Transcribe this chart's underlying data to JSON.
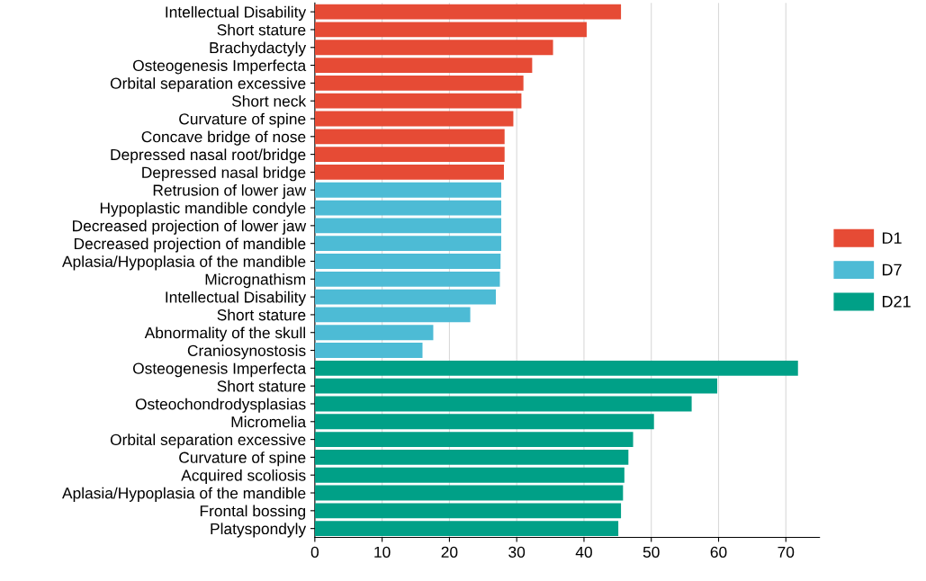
{
  "chart_data": {
    "type": "bar",
    "orientation": "horizontal",
    "categories": [
      "Intellectual Disability",
      "Short stature",
      "Brachydactyly",
      "Osteogenesis Imperfecta",
      "Orbital separation excessive",
      "Short neck",
      "Curvature of spine",
      "Concave bridge of nose",
      "Depressed nasal root/bridge",
      "Depressed nasal bridge",
      "Retrusion of lower jaw",
      "Hypoplastic mandible condyle",
      "Decreased projection of lower jaw",
      "Decreased projection of mandible",
      "Aplasia/Hypoplasia of the mandible",
      "Micrognathism",
      "Intellectual Disability",
      "Short stature",
      "Abnormality of the skull",
      "Craniosynostosis",
      "Osteogenesis Imperfecta",
      "Short stature",
      "Osteochondrodysplasias",
      "Micromelia",
      "Orbital separation excessive",
      "Curvature of spine",
      "Acquired scoliosis",
      "Aplasia/Hypoplasia of the mandible",
      "Frontal bossing",
      "Platyspondyly"
    ],
    "series": [
      {
        "name": "D1",
        "color": "#e64b35",
        "values": [
          45.5,
          40.4,
          35.4,
          32.3,
          31.0,
          30.7,
          29.5,
          28.2,
          28.2,
          28.1,
          null,
          null,
          null,
          null,
          null,
          null,
          null,
          null,
          null,
          null,
          null,
          null,
          null,
          null,
          null,
          null,
          null,
          null,
          null,
          null
        ]
      },
      {
        "name": "D7",
        "color": "#4dbbd5",
        "values": [
          null,
          null,
          null,
          null,
          null,
          null,
          null,
          null,
          null,
          null,
          27.7,
          27.7,
          27.7,
          27.7,
          27.6,
          27.5,
          26.9,
          23.1,
          17.6,
          16.0,
          null,
          null,
          null,
          null,
          null,
          null,
          null,
          null,
          null,
          null
        ]
      },
      {
        "name": "D21",
        "color": "#00a087",
        "values": [
          null,
          null,
          null,
          null,
          null,
          null,
          null,
          null,
          null,
          null,
          null,
          null,
          null,
          null,
          null,
          null,
          null,
          null,
          null,
          null,
          71.8,
          59.8,
          56.0,
          50.4,
          47.3,
          46.6,
          46.0,
          45.8,
          45.5,
          45.1
        ]
      }
    ],
    "xlim": [
      0,
      75
    ],
    "xticks": [
      0,
      10,
      20,
      30,
      40,
      50,
      60,
      70
    ],
    "grid": "x",
    "legend": "right"
  }
}
